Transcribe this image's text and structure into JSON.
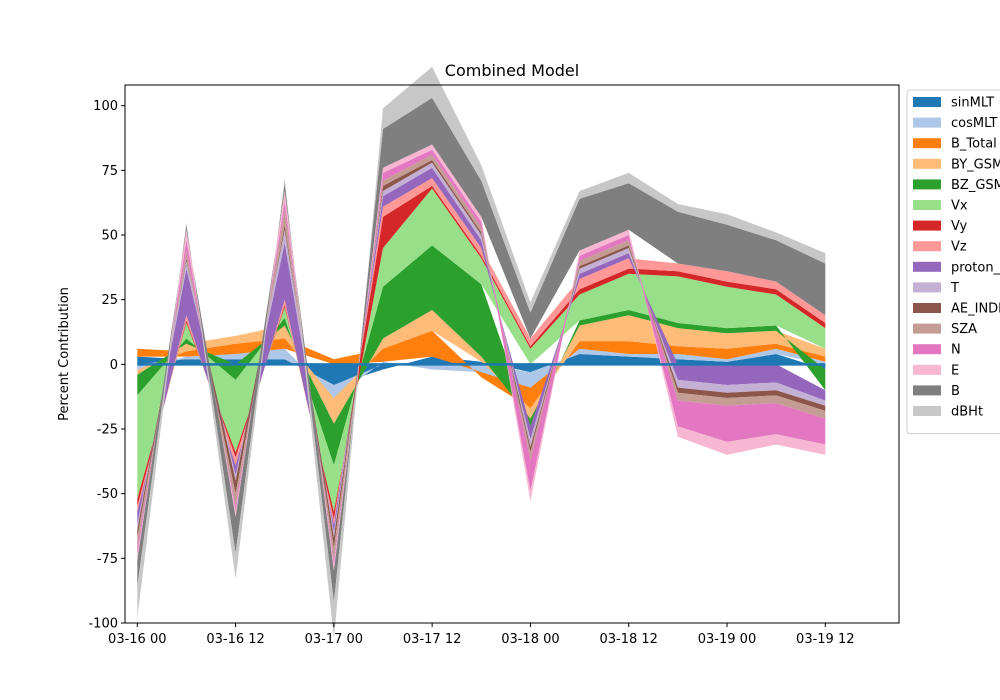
{
  "chart_data": {
    "type": "area",
    "title": "Combined Model",
    "xlabel": "",
    "ylabel": "Percent Contribution",
    "ylim": [
      -100,
      108
    ],
    "xlim": [
      "2024-03-15T22:30",
      "2024-03-19T21:00"
    ],
    "yticks": [
      100,
      75,
      50,
      25,
      0,
      -25,
      -50,
      -75,
      -100
    ],
    "xticks": [
      {
        "t": "2024-03-16T00:00",
        "label": "03-16 00"
      },
      {
        "t": "2024-03-16T12:00",
        "label": "03-16 12"
      },
      {
        "t": "2024-03-17T00:00",
        "label": "03-17 00"
      },
      {
        "t": "2024-03-17T12:00",
        "label": "03-17 12"
      },
      {
        "t": "2024-03-18T00:00",
        "label": "03-18 00"
      },
      {
        "t": "2024-03-18T12:00",
        "label": "03-18 12"
      },
      {
        "t": "2024-03-19T00:00",
        "label": "03-19 00"
      },
      {
        "t": "2024-03-19T12:00",
        "label": "03-19 12"
      }
    ],
    "grid": false,
    "legend_position": "outside right",
    "x": [
      "2024-03-16T00:00",
      "2024-03-16T06:00",
      "2024-03-16T12:00",
      "2024-03-16T18:00",
      "2024-03-17T00:00",
      "2024-03-17T06:00",
      "2024-03-17T12:00",
      "2024-03-17T18:00",
      "2024-03-18T00:00",
      "2024-03-18T06:00",
      "2024-03-18T12:00",
      "2024-03-18T18:00",
      "2024-03-19T00:00",
      "2024-03-19T06:00",
      "2024-03-19T12:00"
    ],
    "series": [
      {
        "name": "sinMLT",
        "color": "#1f77b4",
        "values": [
          3,
          2,
          2,
          2,
          -8,
          -2,
          3,
          1,
          -3,
          4,
          3,
          2,
          1,
          4,
          -2
        ]
      },
      {
        "name": "cosMLT",
        "color": "#aec7e8",
        "values": [
          -2,
          1,
          2,
          4,
          -5,
          1,
          -2,
          -3,
          -6,
          2,
          1,
          2,
          1,
          2,
          1
        ]
      },
      {
        "name": "B_Total",
        "color": "#ff7f0e",
        "values": [
          3,
          2,
          4,
          4,
          2,
          5,
          10,
          -2,
          -8,
          3,
          5,
          3,
          4,
          2,
          2
        ]
      },
      {
        "name": "BY_GSM",
        "color": "#ffbb78",
        "values": [
          -2,
          3,
          3,
          5,
          -10,
          4,
          8,
          2,
          -4,
          6,
          10,
          7,
          6,
          5,
          3
        ]
      },
      {
        "name": "BZ_GSM",
        "color": "#2ca02c",
        "values": [
          -8,
          2,
          -6,
          3,
          -16,
          20,
          25,
          28,
          -3,
          2,
          2,
          2,
          2,
          2,
          -8
        ]
      },
      {
        "name": "Vx",
        "color": "#98df8a",
        "values": [
          -40,
          6,
          -28,
          4,
          -18,
          15,
          22,
          10,
          6,
          10,
          14,
          18,
          16,
          12,
          8
        ]
      },
      {
        "name": "Vy",
        "color": "#d62728",
        "values": [
          -3,
          1,
          -2,
          1,
          -3,
          12,
          1,
          1,
          1,
          2,
          2,
          2,
          2,
          2,
          2
        ]
      },
      {
        "name": "Vz",
        "color": "#ff9896",
        "values": [
          -2,
          2,
          -3,
          2,
          -2,
          4,
          3,
          3,
          3,
          4,
          4,
          3,
          4,
          3,
          3
        ]
      },
      {
        "name": "proton_density",
        "color": "#9467bd",
        "values": [
          -5,
          18,
          -4,
          22,
          -3,
          4,
          4,
          3,
          -5,
          2,
          2,
          -6,
          -8,
          -7,
          -4
        ]
      },
      {
        "name": "T",
        "color": "#c5b0d5",
        "values": [
          -2,
          3,
          -2,
          5,
          -2,
          2,
          2,
          2,
          -3,
          2,
          2,
          -3,
          -3,
          -3,
          -2
        ]
      },
      {
        "name": "AE_INDEX",
        "color": "#8c564b",
        "values": [
          -3,
          1,
          -5,
          2,
          -4,
          2,
          1,
          1,
          -2,
          1,
          1,
          -2,
          -2,
          -2,
          -2
        ]
      },
      {
        "name": "SZA",
        "color": "#c49c94",
        "values": [
          -4,
          3,
          -5,
          6,
          -5,
          2,
          2,
          2,
          -3,
          2,
          2,
          -3,
          -3,
          -3,
          -3
        ]
      },
      {
        "name": "N",
        "color": "#e377c2",
        "values": [
          -3,
          4,
          -2,
          3,
          -2,
          3,
          2,
          2,
          -12,
          2,
          2,
          -10,
          -14,
          -12,
          -10
        ]
      },
      {
        "name": "E",
        "color": "#f7b6d2",
        "values": [
          -2,
          4,
          -2,
          4,
          -2,
          2,
          2,
          2,
          -4,
          2,
          2,
          -4,
          -5,
          -4,
          -4
        ]
      },
      {
        "name": "B",
        "color": "#7f7f7f",
        "values": [
          -10,
          2,
          -14,
          3,
          -12,
          15,
          18,
          14,
          10,
          20,
          18,
          20,
          18,
          16,
          20
        ]
      },
      {
        "name": "dBHt",
        "color": "#c7c7c7",
        "values": [
          -12,
          1,
          -10,
          2,
          -14,
          8,
          12,
          6,
          4,
          3,
          4,
          3,
          4,
          3,
          4
        ]
      }
    ]
  }
}
